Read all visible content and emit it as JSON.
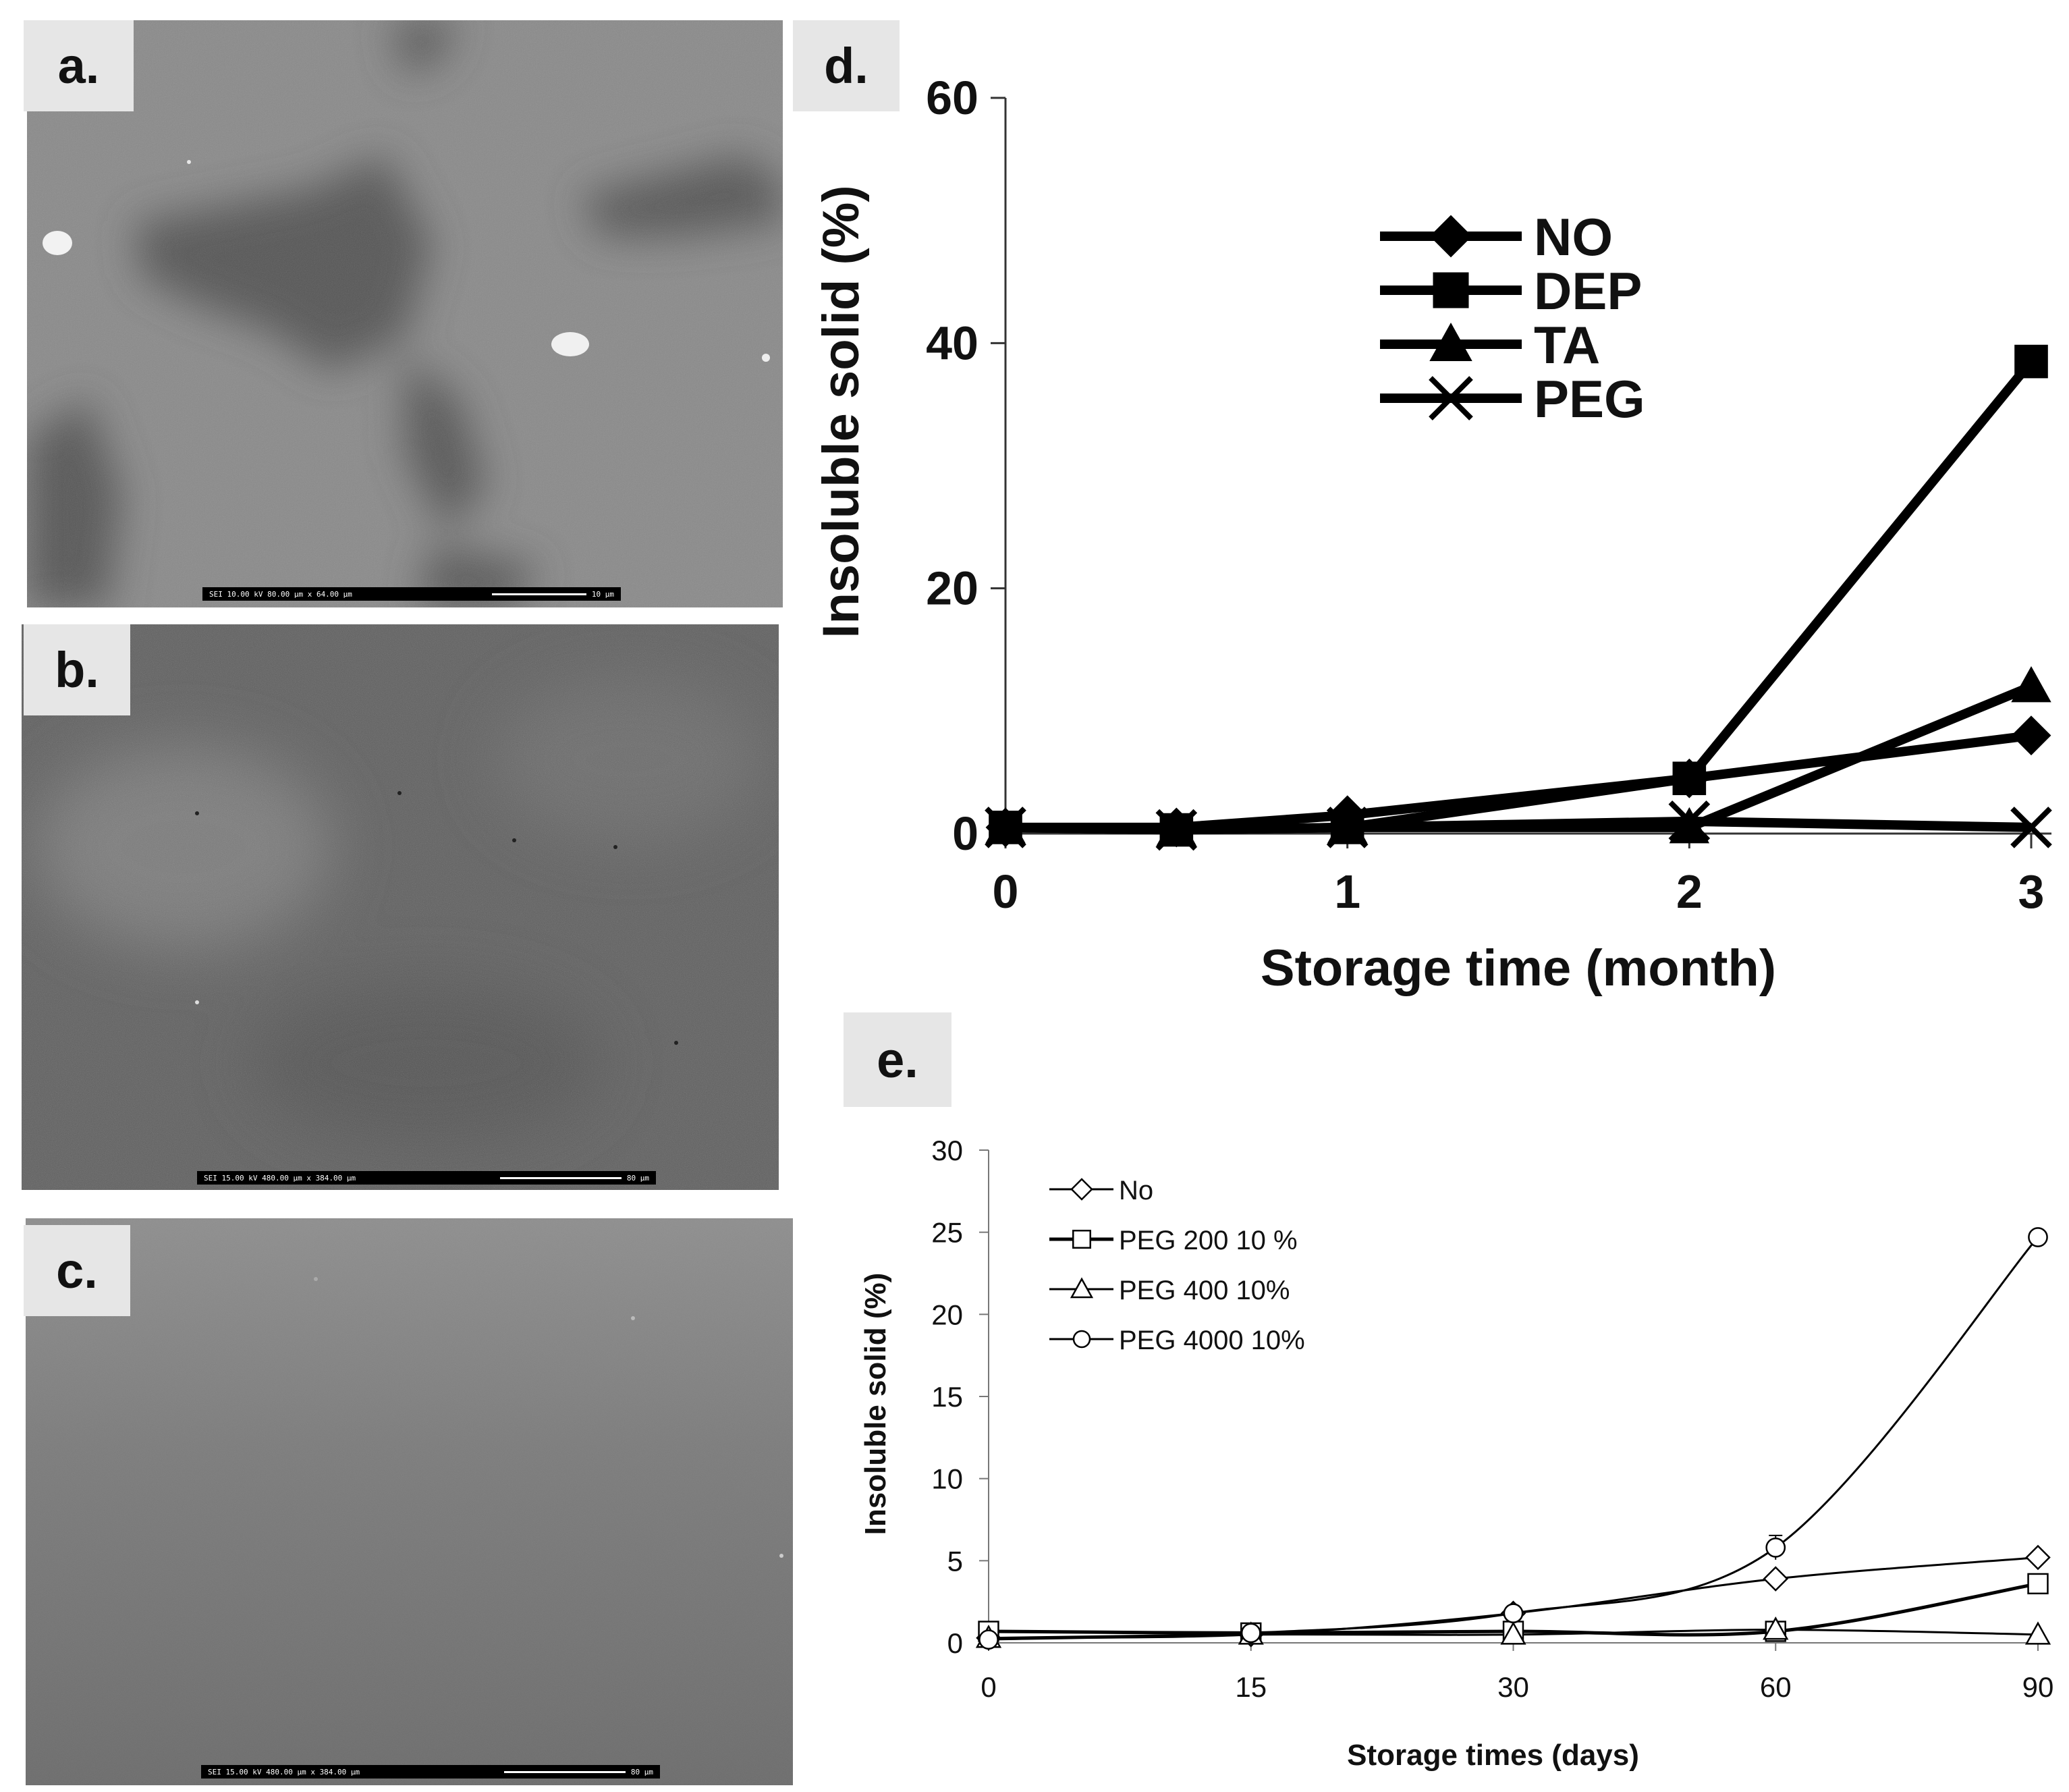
{
  "panels": {
    "a": {
      "label": "a.",
      "scalebar": "SEI   10.00 kV   80.00 µm x 64.00 µm",
      "scale_value": "10 µm"
    },
    "b": {
      "label": "b.",
      "scalebar": "SEI   15.00 kV   480.00 µm x 384.00 µm",
      "scale_value": "80 µm"
    },
    "c": {
      "label": "c.",
      "scalebar": "SEI   15.00 kV   480.00 µm x 384.00 µm",
      "scale_value": "80 µm"
    },
    "d": {
      "label": "d."
    },
    "e": {
      "label": "e."
    }
  },
  "chart_data": [
    {
      "id": "d",
      "type": "line",
      "title": "",
      "xlabel": "Storage time (month)",
      "ylabel": "Insoluble solid (%)",
      "xlim": [
        0,
        3
      ],
      "ylim": [
        0,
        60
      ],
      "xticks": [
        0,
        1,
        2,
        3
      ],
      "yticks": [
        0,
        20,
        40,
        60
      ],
      "grid": false,
      "legend_position": "top-right",
      "colors": {
        "line": "#000000"
      },
      "series": [
        {
          "name": "NO",
          "marker": "diamond",
          "x": [
            0,
            0.5,
            1,
            2,
            3
          ],
          "y": [
            0.5,
            0.5,
            1.5,
            4.5,
            8
          ]
        },
        {
          "name": "DEP",
          "marker": "square",
          "x": [
            0,
            0.5,
            1,
            2,
            3
          ],
          "y": [
            0.5,
            0.3,
            0.5,
            4.5,
            38.5
          ]
        },
        {
          "name": "TA",
          "marker": "triangle",
          "x": [
            0,
            0.5,
            1,
            2,
            3
          ],
          "y": [
            0.5,
            0.3,
            0.5,
            0.5,
            12
          ]
        },
        {
          "name": "PEG",
          "marker": "x",
          "x": [
            0,
            0.5,
            1,
            2,
            3
          ],
          "y": [
            0.5,
            0.3,
            0.5,
            1,
            0.5
          ]
        }
      ]
    },
    {
      "id": "e",
      "type": "line",
      "title": "",
      "xlabel": "Storage times (days)",
      "ylabel": "Insoluble solid (%)",
      "categories": [
        "0",
        "15",
        "30",
        "60",
        "90"
      ],
      "ylim": [
        0,
        30
      ],
      "yticks": [
        0,
        5,
        10,
        15,
        20,
        25,
        30
      ],
      "grid": false,
      "legend_position": "top-left",
      "colors": {
        "line": "#000000",
        "marker_fill": "#ffffff"
      },
      "series": [
        {
          "name": "No",
          "marker": "diamond",
          "values": [
            0.3,
            0.5,
            1.8,
            3.9,
            5.2
          ]
        },
        {
          "name": "PEG 200 10 %",
          "marker": "square",
          "values": [
            0.7,
            0.6,
            0.7,
            0.7,
            3.6
          ]
        },
        {
          "name": "PEG 400 10%",
          "marker": "triangle",
          "values": [
            0.3,
            0.5,
            0.5,
            0.8,
            0.5
          ]
        },
        {
          "name": "PEG 4000 10%",
          "marker": "circle",
          "values": [
            0.2,
            0.6,
            1.8,
            5.8,
            24.7
          ]
        }
      ]
    }
  ]
}
